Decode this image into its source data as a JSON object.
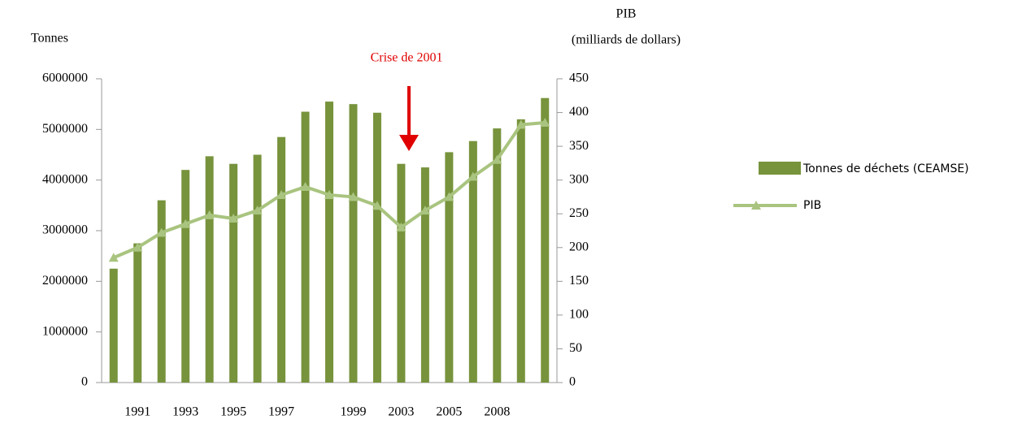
{
  "chart_data": {
    "type": "bar-line",
    "ylabel": "Tonnes",
    "y2label": [
      "PIB",
      "(milliards de dollars)"
    ],
    "annotation": "Crise de 2001",
    "categories": [
      null,
      "1991",
      null,
      "1993",
      null,
      "1995",
      null,
      "1997",
      null,
      null,
      "1999",
      null,
      "2003",
      null,
      "2005",
      null,
      "2008",
      null,
      null
    ],
    "series": [
      {
        "name": "Tonnes de déchets (CEAMSE)",
        "color": "#77933c",
        "values": [
          2250000,
          2750000,
          3600000,
          4200000,
          4470000,
          4320000,
          4500000,
          4850000,
          5350000,
          5550000,
          5500000,
          5330000,
          4320000,
          4250000,
          4550000,
          4770000,
          5020000,
          5200000,
          5620000
        ]
      },
      {
        "name": "PIB",
        "color": "#a9c47f",
        "axis": "y2",
        "values": [
          185,
          200,
          222,
          235,
          248,
          243,
          255,
          278,
          290,
          278,
          275,
          262,
          230,
          255,
          275,
          305,
          330,
          382,
          385
        ]
      }
    ],
    "ylim": [
      0,
      6000000
    ],
    "yticks": [
      0,
      1000000,
      2000000,
      3000000,
      4000000,
      5000000,
      6000000
    ],
    "y2lim": [
      0,
      450
    ],
    "y2ticks": [
      0,
      50,
      100,
      150,
      200,
      250,
      300,
      350,
      400,
      450
    ]
  }
}
